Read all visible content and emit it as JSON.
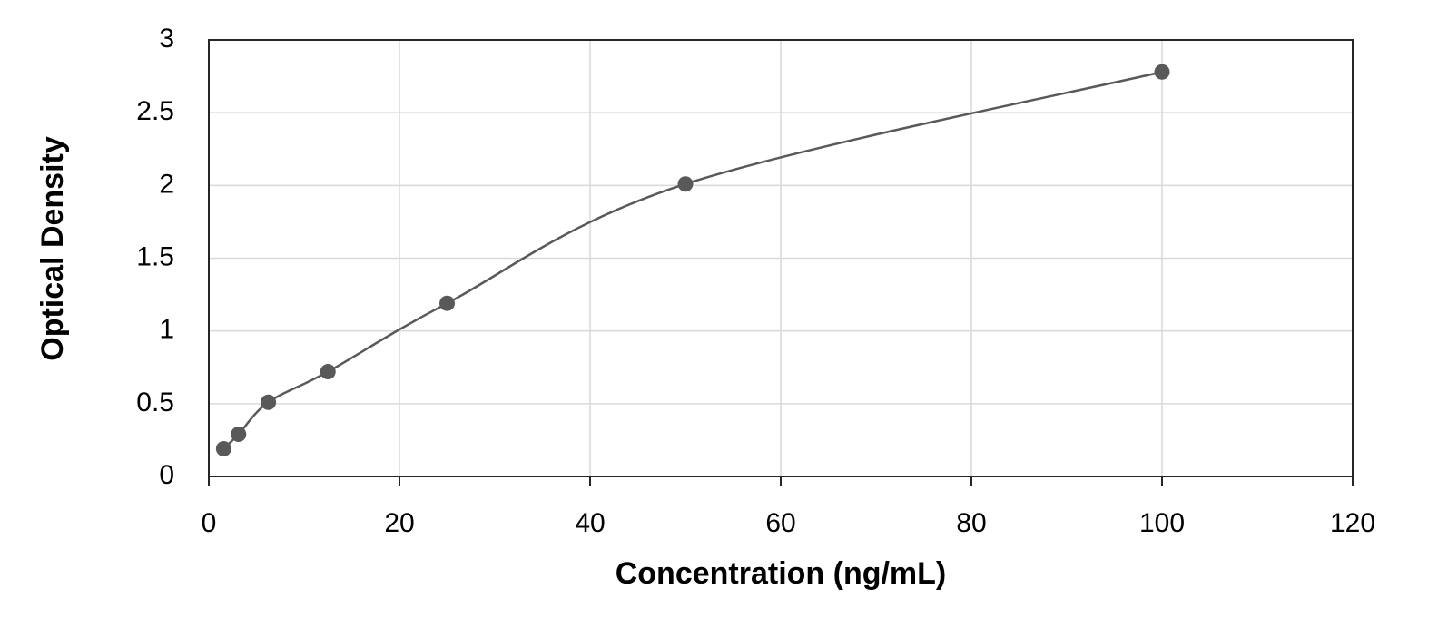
{
  "chart_data": {
    "type": "scatter",
    "x_label": "Concentration (ng/mL)",
    "y_label": "Optical Density",
    "x": [
      1.56,
      3.12,
      6.25,
      12.5,
      25,
      50,
      100
    ],
    "values": [
      0.19,
      0.29,
      0.51,
      0.72,
      1.19,
      2.01,
      2.78
    ],
    "color": "#595959",
    "line": "smooth",
    "xlim": [
      0,
      120
    ],
    "xticks": [
      0,
      20,
      40,
      60,
      80,
      100,
      120
    ],
    "ylim": [
      0,
      3
    ],
    "yticks": [
      0,
      0.5,
      1,
      1.5,
      2,
      2.5,
      3
    ],
    "grid": true
  }
}
